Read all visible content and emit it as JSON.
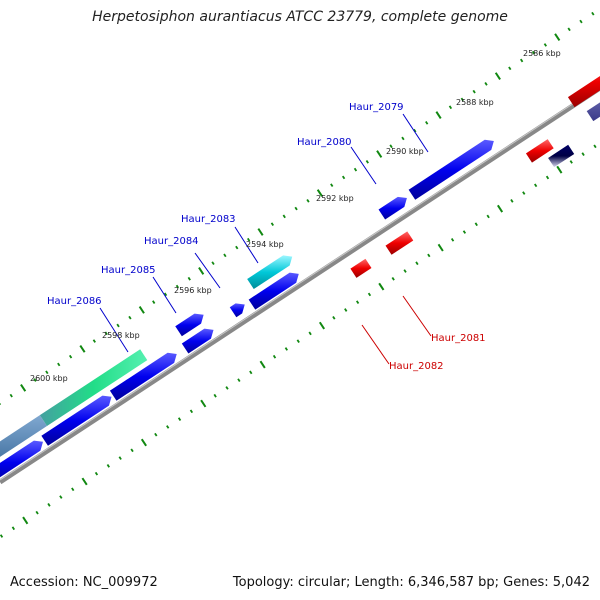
{
  "title": "Herpetosiphon aurantiacus ATCC 23779, complete genome",
  "footer": {
    "accession": "Accession: NC_009972",
    "summary": "Topology: circular; Length: 6,346,587 bp; Genes: 5,042"
  },
  "scale_labels": [
    "2586 kbp",
    "2588 kbp",
    "2590 kbp",
    "2592 kbp",
    "2594 kbp",
    "2596 kbp",
    "2598 kbp",
    "2600 kbp"
  ],
  "genes": [
    {
      "label": "Haur_2079",
      "strand": "forward",
      "color": "#0000ee"
    },
    {
      "label": "Haur_2080",
      "strand": "forward",
      "color": "#0000ee"
    },
    {
      "label": "Haur_2081",
      "strand": "reverse",
      "color": "#dd0000"
    },
    {
      "label": "Haur_2082",
      "strand": "reverse",
      "color": "#dd0000"
    },
    {
      "label": "Haur_2083",
      "strand": "forward",
      "color": "#00b8c8"
    },
    {
      "label": "Haur_2084",
      "strand": "forward",
      "color": "#0000ee"
    },
    {
      "label": "Haur_2085",
      "strand": "forward",
      "color": "#0000ee"
    },
    {
      "label": "Haur_2086",
      "strand": "forward",
      "color": "#0000ee"
    }
  ],
  "colors": {
    "forward_gene": "#0000ee",
    "reverse_gene": "#ee0000",
    "highlight_cyan": "#00c8d8",
    "highlight_green": "#22dd88",
    "backbone": "#777777",
    "tick": "#118811"
  }
}
